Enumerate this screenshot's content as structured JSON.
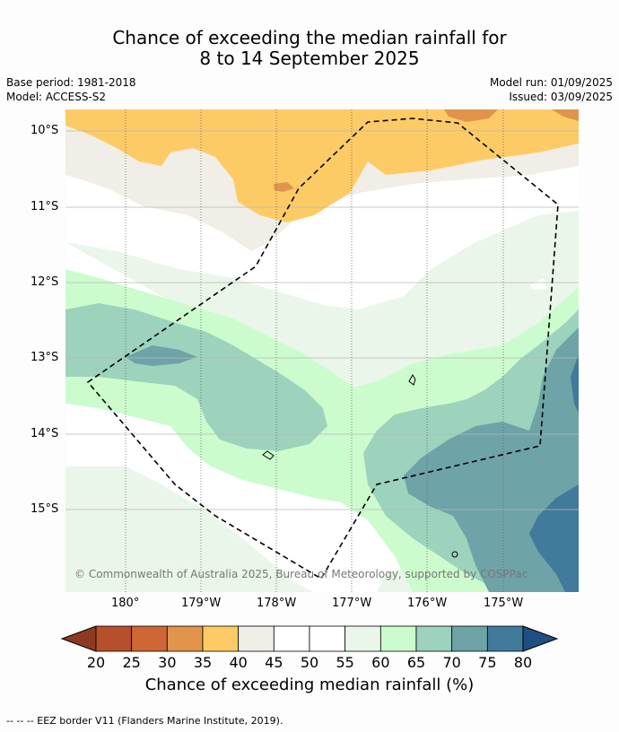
{
  "title_line1": "Chance of exceeding the median rainfall for",
  "title_line2": "8 to 14 September 2025",
  "base_period": "Base period: 1981-2018",
  "model": "Model: ACCESS-S2",
  "model_run": "Model run: 01/09/2025",
  "issued": "Issued: 03/09/2025",
  "lat_labels": [
    "10°S",
    "11°S",
    "12°S",
    "13°S",
    "14°S",
    "15°S"
  ],
  "lon_labels": [
    "180°",
    "179°W",
    "178°W",
    "177°W",
    "176°W",
    "175°W"
  ],
  "copyright": "© Commonwealth of Australia 2025, Bureau of Meteorology, supported by COSPPac",
  "colorbar": {
    "ticks": [
      "20",
      "25",
      "30",
      "35",
      "40",
      "45",
      "50",
      "55",
      "60",
      "65",
      "70",
      "75",
      "80"
    ],
    "colors": [
      "#b5502a",
      "#cf6636",
      "#e0944c",
      "#fdcb65",
      "#f1ede7",
      "#ffffff",
      "#ffffff",
      "#eaf6e9",
      "#ccfccd",
      "#9dd2bd",
      "#6ea3a7",
      "#427a9c"
    ],
    "extend_low": "#8e3a22",
    "extend_high": "#1f4f82",
    "label": "Chance of exceeding median rainfall (%)"
  },
  "footer": "--  --  -- EEZ border V11 (Flanders Marine Institute, 2019)."
}
